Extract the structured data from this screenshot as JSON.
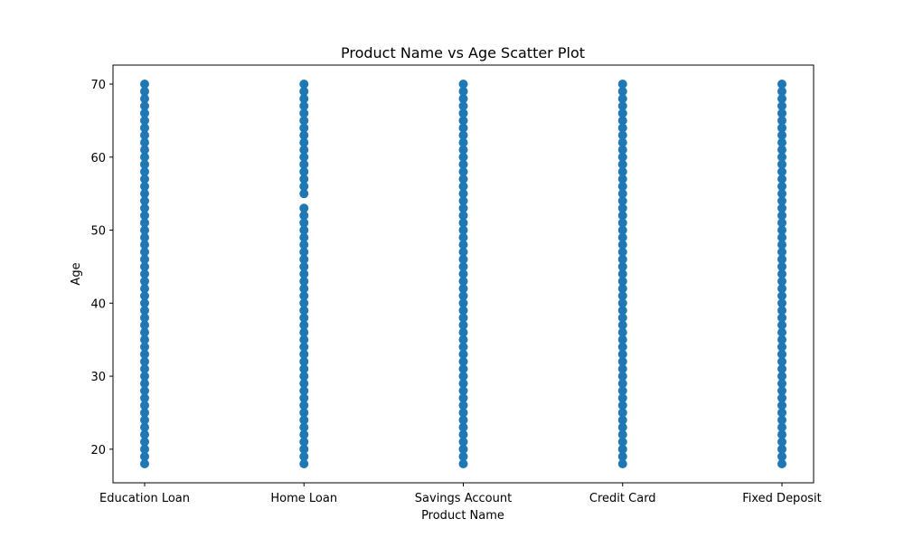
{
  "chart_data": {
    "type": "scatter",
    "title": "Product Name vs Age Scatter Plot",
    "xlabel": "Product Name",
    "ylabel": "Age",
    "categories": [
      "Education Loan",
      "Home Loan",
      "Savings Account",
      "Credit Card",
      "Fixed Deposit"
    ],
    "ylim": [
      15.4,
      72.6
    ],
    "yticks": [
      20,
      30,
      40,
      50,
      60,
      70
    ],
    "grid": false,
    "marker_color": "#1f77b4",
    "points": [
      {
        "category": "Education Loan",
        "ages": [
          18,
          19,
          20,
          21,
          22,
          23,
          24,
          25,
          26,
          27,
          28,
          29,
          30,
          31,
          32,
          33,
          34,
          35,
          36,
          37,
          38,
          39,
          40,
          41,
          42,
          43,
          44,
          45,
          46,
          47,
          48,
          49,
          50,
          51,
          52,
          53,
          54,
          55,
          56,
          57,
          58,
          59,
          60,
          61,
          62,
          63,
          64,
          65,
          66,
          67,
          68,
          69,
          70
        ]
      },
      {
        "category": "Home Loan",
        "ages": [
          18,
          19,
          20,
          21,
          22,
          23,
          24,
          25,
          26,
          27,
          28,
          29,
          30,
          31,
          32,
          33,
          34,
          35,
          36,
          37,
          38,
          39,
          40,
          41,
          42,
          43,
          44,
          45,
          46,
          47,
          48,
          49,
          50,
          51,
          52,
          53,
          55,
          56,
          57,
          58,
          59,
          60,
          61,
          62,
          63,
          64,
          65,
          66,
          67,
          68,
          69,
          70
        ]
      },
      {
        "category": "Savings Account",
        "ages": [
          18,
          19,
          20,
          21,
          22,
          23,
          24,
          25,
          26,
          27,
          28,
          29,
          30,
          31,
          32,
          33,
          34,
          35,
          36,
          37,
          38,
          39,
          40,
          41,
          42,
          43,
          44,
          45,
          46,
          47,
          48,
          49,
          50,
          51,
          52,
          53,
          54,
          55,
          56,
          57,
          58,
          59,
          60,
          61,
          62,
          63,
          64,
          65,
          66,
          67,
          68,
          69,
          70
        ]
      },
      {
        "category": "Credit Card",
        "ages": [
          18,
          19,
          20,
          21,
          22,
          23,
          24,
          25,
          26,
          27,
          28,
          29,
          30,
          31,
          32,
          33,
          34,
          35,
          36,
          37,
          38,
          39,
          40,
          41,
          42,
          43,
          44,
          45,
          46,
          47,
          48,
          49,
          50,
          51,
          52,
          53,
          54,
          55,
          56,
          57,
          58,
          59,
          60,
          61,
          62,
          63,
          64,
          65,
          66,
          67,
          68,
          69,
          70
        ]
      },
      {
        "category": "Fixed Deposit",
        "ages": [
          18,
          19,
          20,
          21,
          22,
          23,
          24,
          25,
          26,
          27,
          28,
          29,
          30,
          31,
          32,
          33,
          34,
          35,
          36,
          37,
          38,
          39,
          40,
          41,
          42,
          43,
          44,
          45,
          46,
          47,
          48,
          49,
          50,
          51,
          52,
          53,
          54,
          55,
          56,
          57,
          58,
          59,
          60,
          61,
          62,
          63,
          64,
          65,
          66,
          67,
          68,
          69,
          70
        ]
      }
    ]
  }
}
